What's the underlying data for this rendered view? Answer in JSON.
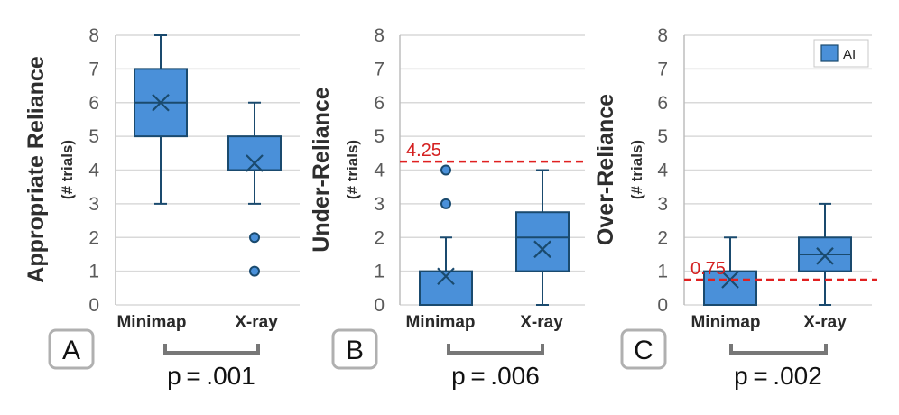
{
  "chart_data": [
    {
      "type": "box",
      "panel_label": "A",
      "ylabel": "Appropriate Reliance",
      "ylabel_sub": "(# trials)",
      "ylim": [
        0,
        8
      ],
      "yticks": [
        0,
        1,
        2,
        3,
        4,
        5,
        6,
        7,
        8
      ],
      "categories": [
        "Minimap",
        "X-ray"
      ],
      "boxes": [
        {
          "category": "Minimap",
          "min": 3,
          "q1": 5,
          "median": 6,
          "q3": 7,
          "max": 8,
          "mean": 6.0,
          "outliers": []
        },
        {
          "category": "X-ray",
          "min": 3,
          "q1": 4,
          "median": 4,
          "q3": 5,
          "max": 6,
          "mean": 4.2,
          "outliers": [
            2,
            1
          ]
        }
      ],
      "reference_line": null,
      "significance": "p = .001"
    },
    {
      "type": "box",
      "panel_label": "B",
      "ylabel": "Under-Reliance",
      "ylabel_sub": "(# trials)",
      "ylim": [
        0,
        8
      ],
      "yticks": [
        0,
        1,
        2,
        3,
        4,
        5,
        6,
        7,
        8
      ],
      "categories": [
        "Minimap",
        "X-ray"
      ],
      "boxes": [
        {
          "category": "Minimap",
          "min": 0,
          "q1": 0,
          "median": 0,
          "q3": 1,
          "max": 2,
          "mean": 0.85,
          "outliers": [
            3,
            4
          ]
        },
        {
          "category": "X-ray",
          "min": 0,
          "q1": 1,
          "median": 2,
          "q3": 2.75,
          "max": 4,
          "mean": 1.65,
          "outliers": []
        }
      ],
      "reference_line": {
        "value": 4.25,
        "label": "4.25"
      },
      "significance": "p = .006"
    },
    {
      "type": "box",
      "panel_label": "C",
      "ylabel": "Over-Reliance",
      "ylabel_sub": "(# trials)",
      "ylim": [
        0,
        8
      ],
      "yticks": [
        0,
        1,
        2,
        3,
        4,
        5,
        6,
        7,
        8
      ],
      "categories": [
        "Minimap",
        "X-ray"
      ],
      "boxes": [
        {
          "category": "Minimap",
          "min": 0,
          "q1": 0,
          "median": 0,
          "q3": 1,
          "max": 2,
          "mean": 0.75,
          "outliers": []
        },
        {
          "category": "X-ray",
          "min": 0,
          "q1": 1,
          "median": 1.5,
          "q3": 2,
          "max": 3,
          "mean": 1.45,
          "outliers": []
        }
      ],
      "reference_line": {
        "value": 0.75,
        "label": "0.75"
      },
      "significance": "p = .002",
      "legend": {
        "label": "AI",
        "position": "top-right"
      }
    }
  ],
  "colors": {
    "box_fill": "#4a90d9",
    "box_stroke": "#1a4a6e",
    "reference": "#e02020",
    "grid": "#d9d9d9",
    "bracket": "#777777"
  }
}
